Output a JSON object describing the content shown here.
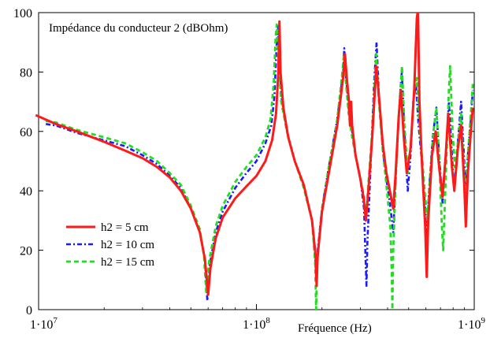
{
  "chart_data": {
    "type": "line",
    "title": "Impédance du conducteur 2 (dBOhm)",
    "xlabel": "Fréquence (Hz)",
    "ylabel": "",
    "x_scale": "log",
    "xlim": [
      10000000,
      1000000000
    ],
    "ylim": [
      0,
      100
    ],
    "y_ticks": [
      "0",
      "20",
      "40",
      "60",
      "80",
      "100"
    ],
    "x_ticks": [
      {
        "base": "1·10",
        "exp": "7"
      },
      {
        "base": "1·10",
        "exp": "8"
      },
      {
        "base": "1·10",
        "exp": "9"
      }
    ],
    "grid": false,
    "legend_position": "bottom-left",
    "series": [
      {
        "name": "h2 = 5 cm",
        "color": "#ff1a1a",
        "dash": "solid",
        "points": [
          [
            9700000,
            65.5
          ],
          [
            12000000,
            62.5
          ],
          [
            15000000,
            60
          ],
          [
            20000000,
            56.5
          ],
          [
            25000000,
            53.5
          ],
          [
            30000000,
            51
          ],
          [
            35000000,
            48
          ],
          [
            40000000,
            44.5
          ],
          [
            45000000,
            40
          ],
          [
            50000000,
            34
          ],
          [
            55000000,
            26
          ],
          [
            58000000,
            17
          ],
          [
            60000000,
            5
          ],
          [
            61500000,
            14
          ],
          [
            65000000,
            24
          ],
          [
            70000000,
            31
          ],
          [
            80000000,
            37.5
          ],
          [
            90000000,
            41.5
          ],
          [
            100000000,
            45
          ],
          [
            110000000,
            50
          ],
          [
            118000000,
            57
          ],
          [
            123000000,
            66
          ],
          [
            126000000,
            80
          ],
          [
            127500000,
            97
          ],
          [
            129000000,
            80
          ],
          [
            133000000,
            68
          ],
          [
            140000000,
            58
          ],
          [
            150000000,
            50
          ],
          [
            165000000,
            42
          ],
          [
            180000000,
            30
          ],
          [
            187000000,
            18
          ],
          [
            189000000,
            8
          ],
          [
            191000000,
            18
          ],
          [
            200000000,
            33
          ],
          [
            215000000,
            46
          ],
          [
            235000000,
            62
          ],
          [
            250000000,
            78
          ],
          [
            255000000,
            86
          ],
          [
            260000000,
            78
          ],
          [
            266000000,
            70
          ],
          [
            269000000,
            62
          ],
          [
            272000000,
            70
          ],
          [
            275000000,
            62
          ],
          [
            285000000,
            52
          ],
          [
            300000000,
            44
          ],
          [
            310000000,
            38
          ],
          [
            318000000,
            30
          ],
          [
            325000000,
            38
          ],
          [
            340000000,
            58
          ],
          [
            350000000,
            74
          ],
          [
            355000000,
            82
          ],
          [
            365000000,
            72
          ],
          [
            380000000,
            56
          ],
          [
            395000000,
            46
          ],
          [
            410000000,
            40
          ],
          [
            425000000,
            34
          ],
          [
            435000000,
            45
          ],
          [
            450000000,
            65
          ],
          [
            460000000,
            74
          ],
          [
            475000000,
            58
          ],
          [
            490000000,
            46
          ],
          [
            510000000,
            54
          ],
          [
            530000000,
            74
          ],
          [
            545000000,
            98
          ],
          [
            552000000,
            101
          ],
          [
            560000000,
            70
          ],
          [
            575000000,
            50
          ],
          [
            595000000,
            28
          ],
          [
            605000000,
            11
          ],
          [
            615000000,
            30
          ],
          [
            640000000,
            52
          ],
          [
            665000000,
            60
          ],
          [
            690000000,
            48
          ],
          [
            715000000,
            38
          ],
          [
            740000000,
            52
          ],
          [
            760000000,
            66
          ],
          [
            790000000,
            48
          ],
          [
            810000000,
            40
          ],
          [
            840000000,
            54
          ],
          [
            870000000,
            62
          ],
          [
            900000000,
            42
          ],
          [
            915000000,
            28
          ],
          [
            935000000,
            46
          ],
          [
            965000000,
            60
          ],
          [
            985000000,
            68
          ]
        ]
      },
      {
        "name": "h2 = 10 cm",
        "color": "#1a1aff",
        "dash": "dashdot",
        "points": [
          [
            10800000,
            62.5
          ],
          [
            12000000,
            62
          ],
          [
            15000000,
            59.5
          ],
          [
            20000000,
            57
          ],
          [
            25000000,
            55
          ],
          [
            30000000,
            52
          ],
          [
            35000000,
            49
          ],
          [
            40000000,
            45
          ],
          [
            45000000,
            41
          ],
          [
            50000000,
            34
          ],
          [
            55000000,
            26
          ],
          [
            58000000,
            17
          ],
          [
            59500000,
            3
          ],
          [
            61000000,
            15
          ],
          [
            65000000,
            26
          ],
          [
            70000000,
            33
          ],
          [
            80000000,
            41
          ],
          [
            90000000,
            46
          ],
          [
            100000000,
            50
          ],
          [
            110000000,
            56
          ],
          [
            117000000,
            62
          ],
          [
            121000000,
            72
          ],
          [
            124000000,
            90
          ],
          [
            125500000,
            96
          ],
          [
            127000000,
            86
          ],
          [
            130000000,
            72
          ],
          [
            138000000,
            60
          ],
          [
            150000000,
            50
          ],
          [
            165000000,
            42
          ],
          [
            180000000,
            30
          ],
          [
            186000000,
            18
          ],
          [
            188000000,
            10
          ],
          [
            190000000,
            18
          ],
          [
            200000000,
            34
          ],
          [
            215000000,
            48
          ],
          [
            235000000,
            64
          ],
          [
            250000000,
            80
          ],
          [
            253000000,
            88
          ],
          [
            258000000,
            78
          ],
          [
            265000000,
            68
          ],
          [
            275000000,
            60
          ],
          [
            285000000,
            52
          ],
          [
            300000000,
            44
          ],
          [
            312000000,
            34
          ],
          [
            318000000,
            14
          ],
          [
            320000000,
            8
          ],
          [
            323000000,
            22
          ],
          [
            335000000,
            50
          ],
          [
            348000000,
            78
          ],
          [
            356000000,
            90
          ],
          [
            365000000,
            72
          ],
          [
            380000000,
            54
          ],
          [
            395000000,
            44
          ],
          [
            410000000,
            36
          ],
          [
            425000000,
            26
          ],
          [
            432000000,
            38
          ],
          [
            445000000,
            58
          ],
          [
            458000000,
            74
          ],
          [
            465000000,
            80
          ],
          [
            478000000,
            60
          ],
          [
            495000000,
            40
          ],
          [
            510000000,
            52
          ],
          [
            525000000,
            70
          ],
          [
            540000000,
            76
          ],
          [
            555000000,
            62
          ],
          [
            575000000,
            50
          ],
          [
            595000000,
            34
          ],
          [
            605000000,
            24
          ],
          [
            620000000,
            40
          ],
          [
            645000000,
            58
          ],
          [
            670000000,
            68
          ],
          [
            690000000,
            52
          ],
          [
            715000000,
            36
          ],
          [
            740000000,
            52
          ],
          [
            765000000,
            70
          ],
          [
            790000000,
            52
          ],
          [
            810000000,
            40
          ],
          [
            840000000,
            56
          ],
          [
            870000000,
            70
          ],
          [
            900000000,
            50
          ],
          [
            915000000,
            40
          ],
          [
            935000000,
            52
          ],
          [
            965000000,
            64
          ],
          [
            985000000,
            74
          ]
        ]
      },
      {
        "name": "h2 = 15 cm",
        "color": "#22dd22",
        "dash": "dashed",
        "points": [
          [
            10800000,
            63.5
          ],
          [
            12000000,
            63
          ],
          [
            15000000,
            60.5
          ],
          [
            20000000,
            58
          ],
          [
            25000000,
            56
          ],
          [
            30000000,
            53
          ],
          [
            35000000,
            50
          ],
          [
            40000000,
            46
          ],
          [
            45000000,
            42
          ],
          [
            50000000,
            35
          ],
          [
            55000000,
            27
          ],
          [
            57500000,
            18
          ],
          [
            58800000,
            6
          ],
          [
            60500000,
            16
          ],
          [
            65000000,
            28
          ],
          [
            70000000,
            35
          ],
          [
            80000000,
            43
          ],
          [
            90000000,
            48
          ],
          [
            100000000,
            52
          ],
          [
            110000000,
            58
          ],
          [
            116000000,
            64
          ],
          [
            120000000,
            76
          ],
          [
            122500000,
            92
          ],
          [
            124000000,
            96
          ],
          [
            126000000,
            84
          ],
          [
            130000000,
            70
          ],
          [
            138000000,
            60
          ],
          [
            150000000,
            50
          ],
          [
            165000000,
            41
          ],
          [
            180000000,
            30
          ],
          [
            186000000,
            16
          ],
          [
            188000000,
            0
          ],
          [
            190000000,
            16
          ],
          [
            200000000,
            34
          ],
          [
            215000000,
            48
          ],
          [
            235000000,
            64
          ],
          [
            248000000,
            80
          ],
          [
            252000000,
            86
          ],
          [
            258000000,
            76
          ],
          [
            265000000,
            66
          ],
          [
            275000000,
            58
          ],
          [
            285000000,
            52
          ],
          [
            300000000,
            44
          ],
          [
            312000000,
            38
          ],
          [
            318000000,
            30
          ],
          [
            325000000,
            40
          ],
          [
            340000000,
            60
          ],
          [
            350000000,
            78
          ],
          [
            355000000,
            86
          ],
          [
            365000000,
            70
          ],
          [
            380000000,
            54
          ],
          [
            395000000,
            42
          ],
          [
            412000000,
            28
          ],
          [
            418000000,
            12
          ],
          [
            421000000,
            0
          ],
          [
            425000000,
            20
          ],
          [
            435000000,
            42
          ],
          [
            448000000,
            62
          ],
          [
            460000000,
            76
          ],
          [
            466000000,
            82
          ],
          [
            478000000,
            62
          ],
          [
            495000000,
            46
          ],
          [
            512000000,
            56
          ],
          [
            530000000,
            74
          ],
          [
            545000000,
            78
          ],
          [
            558000000,
            64
          ],
          [
            575000000,
            52
          ],
          [
            595000000,
            38
          ],
          [
            610000000,
            30
          ],
          [
            625000000,
            44
          ],
          [
            650000000,
            60
          ],
          [
            670000000,
            68
          ],
          [
            690000000,
            52
          ],
          [
            710000000,
            28
          ],
          [
            720000000,
            20
          ],
          [
            740000000,
            44
          ],
          [
            765000000,
            74
          ],
          [
            775000000,
            82
          ],
          [
            795000000,
            60
          ],
          [
            815000000,
            48
          ],
          [
            840000000,
            56
          ],
          [
            870000000,
            66
          ],
          [
            900000000,
            46
          ],
          [
            915000000,
            36
          ],
          [
            935000000,
            52
          ],
          [
            965000000,
            66
          ],
          [
            985000000,
            76
          ]
        ]
      }
    ]
  }
}
